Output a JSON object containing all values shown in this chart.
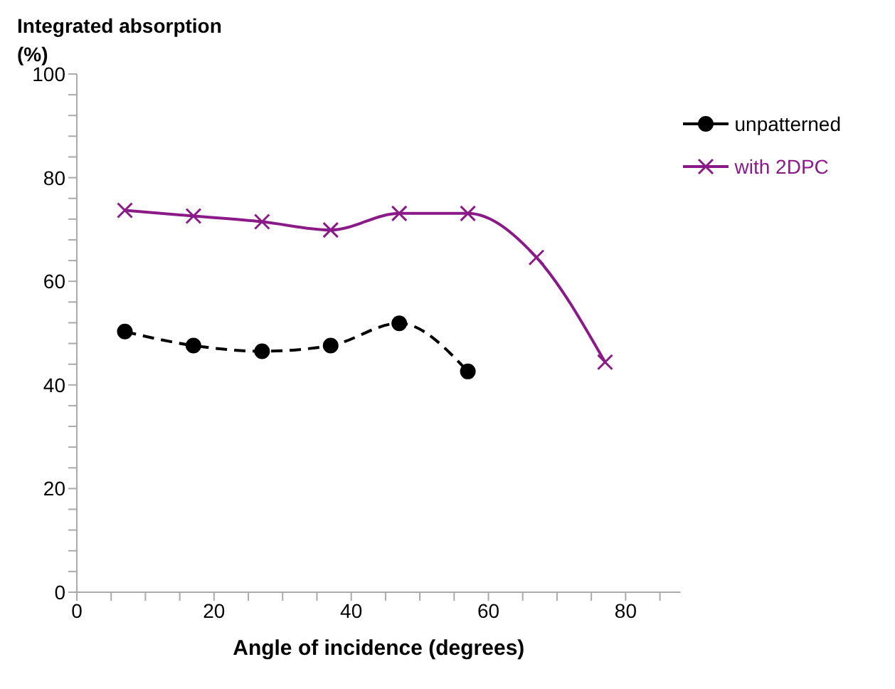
{
  "chart_data": {
    "type": "line",
    "ylabel": "Integrated absorption (%)",
    "xlabel": "Angle of incidence (degrees)",
    "xlim": [
      0,
      88
    ],
    "ylim": [
      0,
      100
    ],
    "xticks": [
      0,
      {
        "value": 5,
        "label": null
      },
      {
        "value": 10,
        "label": null
      },
      {
        "value": 15,
        "label": null
      },
      20,
      {
        "value": 25,
        "label": null
      },
      {
        "value": 30,
        "label": null
      },
      {
        "value": 35,
        "label": null
      },
      40,
      {
        "value": 45,
        "label": null
      },
      {
        "value": 50,
        "label": null
      },
      {
        "value": 55,
        "label": null
      },
      60,
      {
        "value": 65,
        "label": null
      },
      {
        "value": 70,
        "label": null
      },
      {
        "value": 75,
        "label": null
      },
      80,
      {
        "value": 85,
        "label": null
      }
    ],
    "yticks": [
      0,
      {
        "value": 4,
        "label": null
      },
      {
        "value": 8,
        "label": null
      },
      {
        "value": 12,
        "label": null
      },
      {
        "value": 16,
        "label": null
      },
      20,
      {
        "value": 24,
        "label": null
      },
      {
        "value": 28,
        "label": null
      },
      {
        "value": 32,
        "label": null
      },
      {
        "value": 36,
        "label": null
      },
      40,
      {
        "value": 44,
        "label": null
      },
      {
        "value": 48,
        "label": null
      },
      {
        "value": 52,
        "label": null
      },
      {
        "value": 56,
        "label": null
      },
      60,
      {
        "value": 64,
        "label": null
      },
      {
        "value": 68,
        "label": null
      },
      {
        "value": 72,
        "label": null
      },
      {
        "value": 76,
        "label": null
      },
      80,
      {
        "value": 84,
        "label": null
      },
      {
        "value": 88,
        "label": null
      },
      {
        "value": 92,
        "label": null
      },
      {
        "value": 96,
        "label": null
      },
      100
    ],
    "grid": false,
    "legend": "top right",
    "series": [
      {
        "name": "unpatterned",
        "color": "#000000",
        "marker": "circle",
        "line_style": "dashed",
        "x": [
          7,
          17,
          27,
          37,
          47,
          57
        ],
        "values": [
          50.3,
          47.6,
          46.5,
          47.6,
          51.9,
          42.6
        ]
      },
      {
        "name": "with 2DPC",
        "color": "#8b1a89",
        "marker": "cross",
        "line_style": "solid",
        "x": [
          7,
          17,
          27,
          37,
          47,
          57,
          67,
          77
        ],
        "values": [
          73.7,
          72.6,
          71.5,
          69.9,
          73.1,
          73.1,
          64.6,
          44.4
        ]
      }
    ]
  }
}
